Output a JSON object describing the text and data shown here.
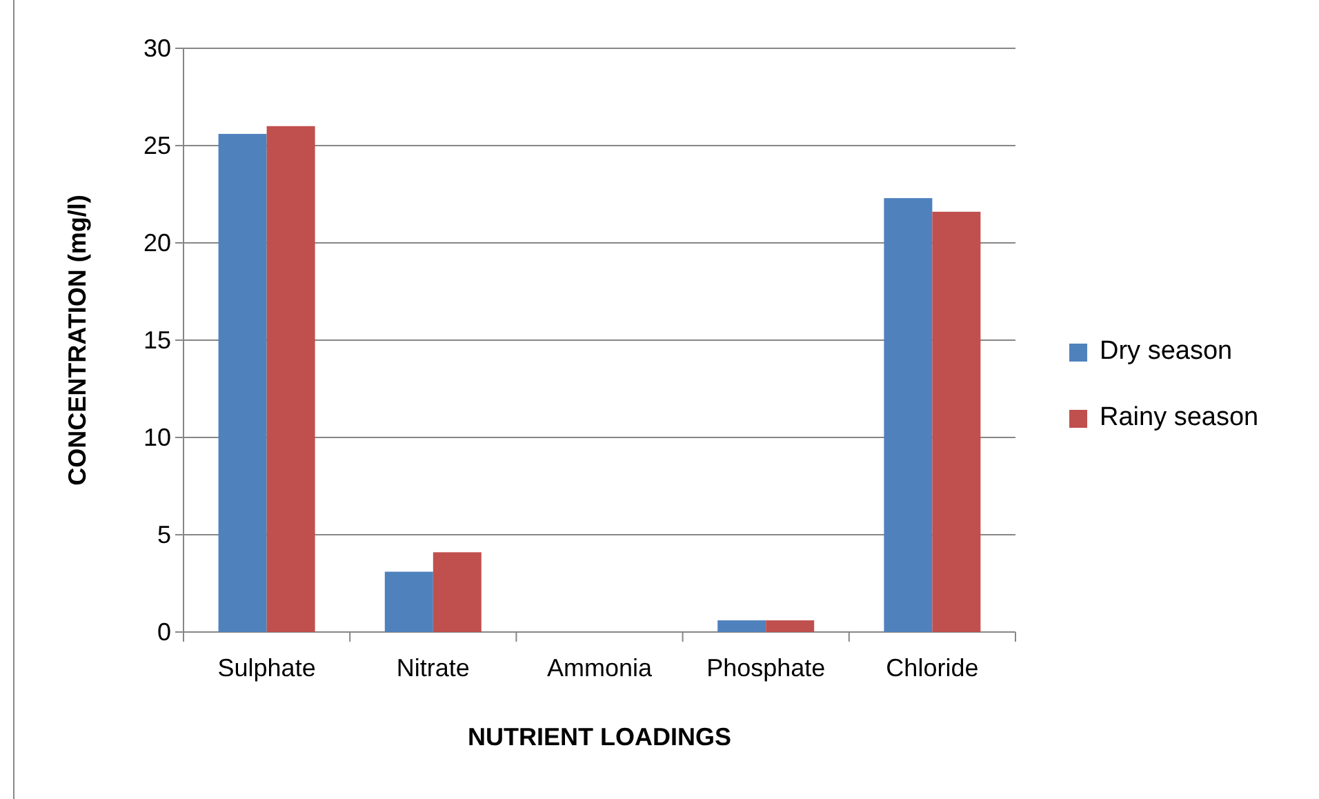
{
  "chart_data": {
    "type": "bar",
    "xlabel": "NUTRIENT LOADINGS",
    "ylabel": "CONCENTRATION (mg/l)",
    "categories": [
      "Sulphate",
      "Nitrate",
      "Ammonia",
      "Phosphate",
      "Chloride"
    ],
    "series": [
      {
        "name": "Dry season",
        "color": "#4f81bd",
        "values": [
          25.6,
          3.1,
          0,
          0.6,
          22.3
        ]
      },
      {
        "name": "Rainy season",
        "color": "#c0504d",
        "values": [
          26.0,
          4.1,
          0,
          0.6,
          21.6
        ]
      }
    ],
    "ylim": [
      0,
      30
    ],
    "yticks": [
      0,
      5,
      10,
      15,
      20,
      25,
      30
    ],
    "grid": "y",
    "legend": "right"
  }
}
